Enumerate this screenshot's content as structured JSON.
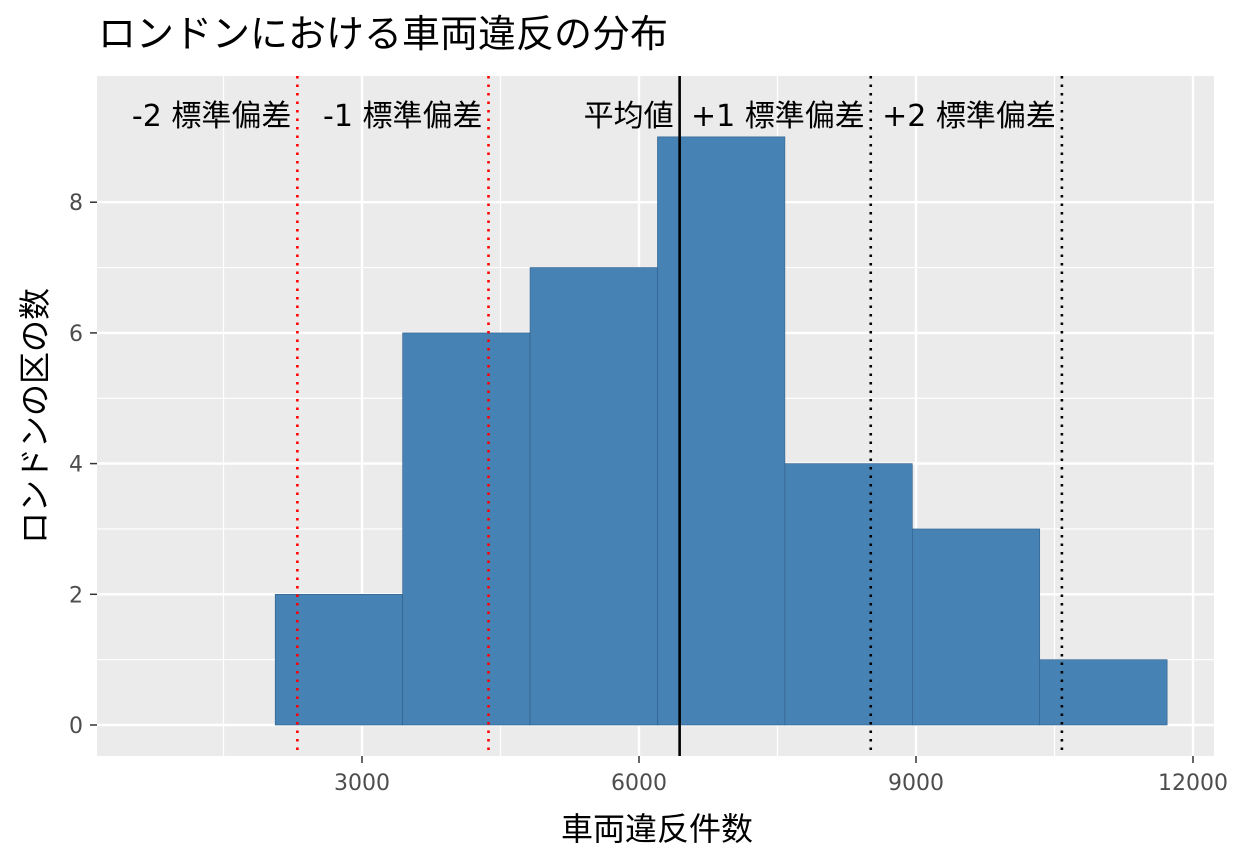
{
  "chart_data": {
    "type": "bar",
    "title": "ロンドンにおける車両違反の分布",
    "xlabel": "車両違反件数",
    "ylabel": "ロンドンの区の数",
    "xlim": [
      0,
      12000
    ],
    "ylim": [
      -0.5,
      9.5
    ],
    "x_ticks": [
      3000,
      6000,
      9000,
      12000
    ],
    "y_ticks": [
      0,
      2,
      4,
      6,
      8
    ],
    "grid": true,
    "bins": [
      {
        "x0": 2060,
        "x1": 3440,
        "count": 2
      },
      {
        "x0": 3440,
        "x1": 4820,
        "count": 6
      },
      {
        "x0": 4820,
        "x1": 6200,
        "count": 7
      },
      {
        "x0": 6200,
        "x1": 7580,
        "count": 9
      },
      {
        "x0": 7580,
        "x1": 8960,
        "count": 4
      },
      {
        "x0": 8960,
        "x1": 10340,
        "count": 3
      },
      {
        "x0": 10340,
        "x1": 11720,
        "count": 1
      }
    ],
    "bar_color": "#4682b4",
    "reference_lines": [
      {
        "label": "-2 標準偏差",
        "x": 2300,
        "color": "#ff0000",
        "style": "dotted"
      },
      {
        "label": "-1 標準偏差",
        "x": 4370,
        "color": "#ff0000",
        "style": "dotted"
      },
      {
        "label": "平均値",
        "x": 6440,
        "color": "#000000",
        "style": "solid"
      },
      {
        "label": "+1 標準偏差",
        "x": 8510,
        "color": "#000000",
        "style": "dotted"
      },
      {
        "label": "+2 標準偏差",
        "x": 10580,
        "color": "#000000",
        "style": "dotted"
      }
    ]
  }
}
